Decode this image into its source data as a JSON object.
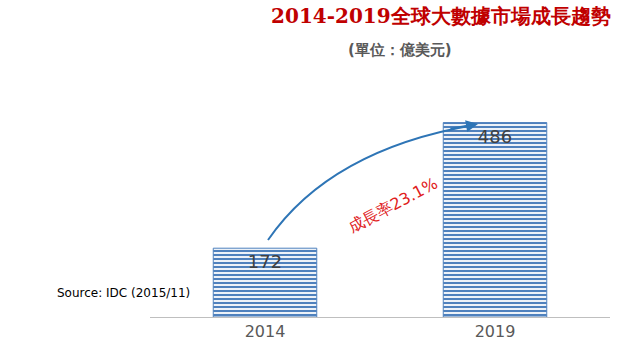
{
  "chart_data": {
    "type": "bar",
    "title": "2014-2019全球大數據市場成長趨勢",
    "subtitle": "(單位：億美元)",
    "categories": [
      "2014",
      "2019"
    ],
    "values": [
      172,
      486
    ],
    "color": "#4f81bd",
    "ylim": [
      0,
      640
    ],
    "grid": false,
    "data_labels": true,
    "tick_labels": "x",
    "annotations": [
      "成長率23.1%",
      "Source: IDC (2015/11)"
    ]
  }
}
